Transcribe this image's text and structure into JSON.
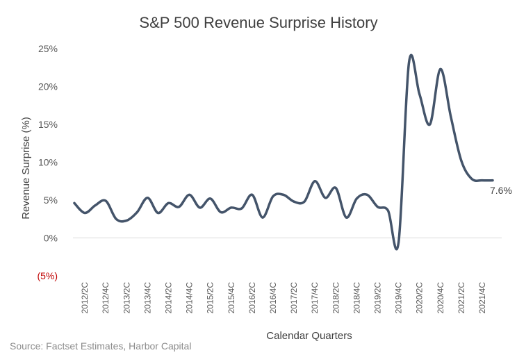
{
  "chart_data": {
    "type": "line",
    "title": "S&P 500 Revenue Surprise History",
    "xlabel": "Calendar Quarters",
    "ylabel": "Revenue Surprise (%)",
    "ylim": [
      -5,
      25
    ],
    "yticks": [
      {
        "value": 25,
        "label": "25%",
        "color": "#595959"
      },
      {
        "value": 20,
        "label": "20%",
        "color": "#595959"
      },
      {
        "value": 15,
        "label": "15%",
        "color": "#595959"
      },
      {
        "value": 10,
        "label": "10%",
        "color": "#595959"
      },
      {
        "value": 5,
        "label": "5%",
        "color": "#595959"
      },
      {
        "value": 0,
        "label": "0%",
        "color": "#595959"
      },
      {
        "value": -5,
        "label": "(5%)",
        "color": "#c00000"
      }
    ],
    "categories": [
      "2012/1C",
      "2012/2C",
      "2012/3C",
      "2012/4C",
      "2013/1C",
      "2013/2C",
      "2013/3C",
      "2013/4C",
      "2014/1C",
      "2014/2C",
      "2014/3C",
      "2014/4C",
      "2015/1C",
      "2015/2C",
      "2015/3C",
      "2015/4C",
      "2016/1C",
      "2016/2C",
      "2016/3C",
      "2016/4C",
      "2017/1C",
      "2017/2C",
      "2017/3C",
      "2017/4C",
      "2018/1C",
      "2018/2C",
      "2018/3C",
      "2018/4C",
      "2019/1C",
      "2019/2C",
      "2019/3C",
      "2019/4C",
      "2020/1C",
      "2020/2C",
      "2020/3C",
      "2020/4C",
      "2021/1C",
      "2021/2C",
      "2021/3C",
      "2021/4C",
      "2022/1C"
    ],
    "tick_labels": [
      "2012/2C",
      "2012/4C",
      "2013/2C",
      "2013/4C",
      "2014/2C",
      "2014/4C",
      "2015/2C",
      "2015/4C",
      "2016/2C",
      "2016/4C",
      "2017/2C",
      "2017/4C",
      "2018/2C",
      "2018/4C",
      "2019/2C",
      "2019/4C",
      "2020/2C",
      "2020/4C",
      "2021/2C",
      "2021/4C"
    ],
    "series": [
      {
        "color": "#44546a",
        "values": [
          4.6,
          3.3,
          4.3,
          4.9,
          2.5,
          2.3,
          3.4,
          5.3,
          3.3,
          4.6,
          4.1,
          5.7,
          4.0,
          5.2,
          3.4,
          4.0,
          3.9,
          5.7,
          2.7,
          5.5,
          5.7,
          4.8,
          4.8,
          7.5,
          5.3,
          6.6,
          2.7,
          5.2,
          5.7,
          4.1,
          3.6,
          -0.6,
          23.2,
          19.0,
          15.0,
          22.3,
          16.0,
          10.2,
          7.8,
          7.6,
          7.6
        ]
      }
    ],
    "annotations": [
      {
        "text": "7.6%"
      }
    ],
    "grid": "horizontal-zero-only",
    "source": "Source: Factset Estimates, Harbor Capital"
  }
}
